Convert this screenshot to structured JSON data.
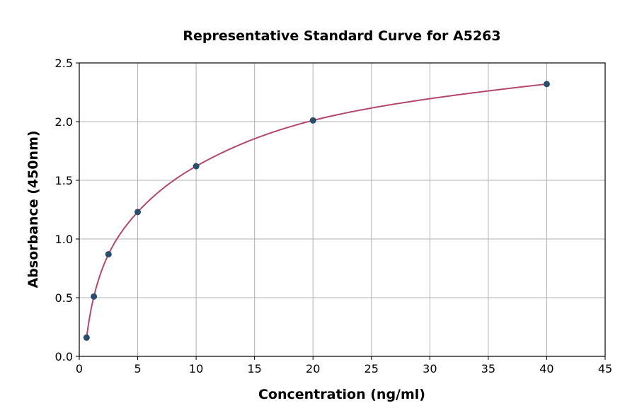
{
  "chart_data": {
    "type": "scatter",
    "title": "Representative Standard Curve for A5263",
    "xlabel": "Concentration (ng/ml)",
    "ylabel": "Absorbance (450nm)",
    "xlim": [
      0,
      45
    ],
    "ylim": [
      0,
      2.5
    ],
    "xticks": [
      0,
      5,
      10,
      15,
      20,
      25,
      30,
      35,
      40,
      45
    ],
    "yticks": [
      0.0,
      0.5,
      1.0,
      1.5,
      2.0,
      2.5
    ],
    "ytick_labels": [
      "0.0",
      "0.5",
      "1.0",
      "1.5",
      "2.0",
      "2.5"
    ],
    "grid": true,
    "x": [
      0.625,
      1.25,
      2.5,
      5,
      10,
      20,
      40
    ],
    "y": [
      0.16,
      0.51,
      0.87,
      1.23,
      1.62,
      2.01,
      2.32
    ],
    "point_color": "#2a4d6e",
    "curve_color": "#b5476b"
  }
}
